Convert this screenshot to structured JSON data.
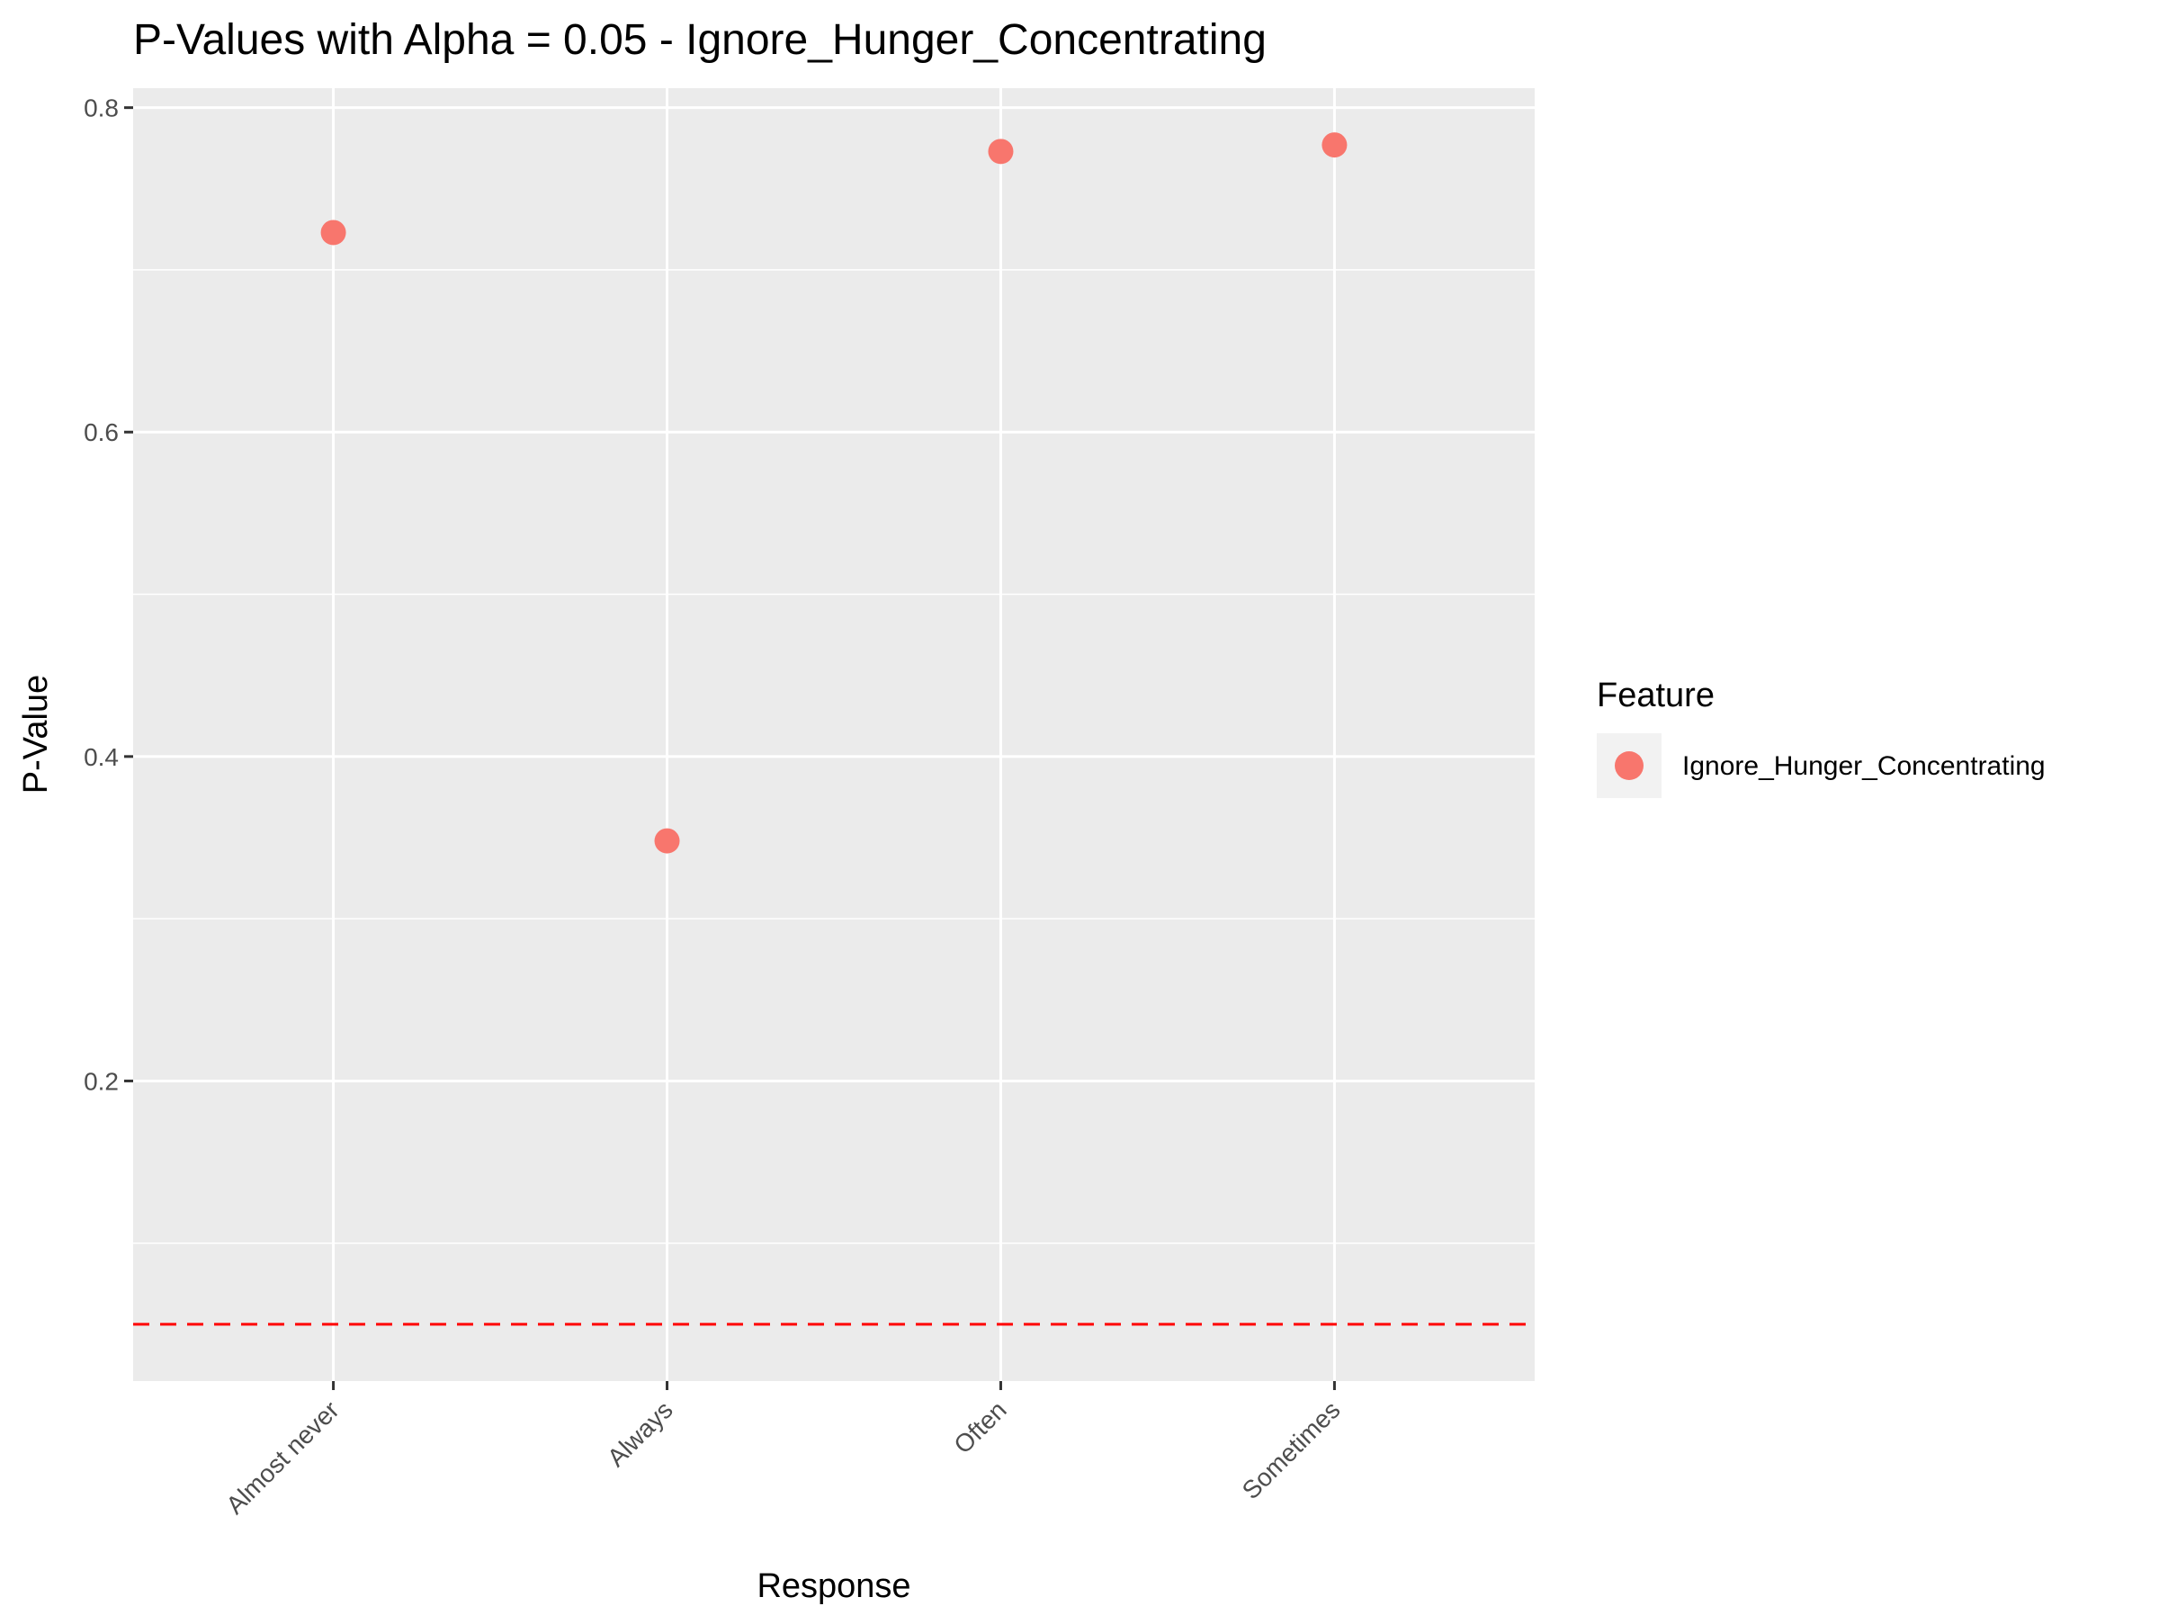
{
  "chart_data": {
    "type": "scatter",
    "title": "P-Values with Alpha = 0.05 - Ignore_Hunger_Concentrating",
    "xlabel": "Response",
    "ylabel": "P-Value",
    "categories": [
      "Almost never",
      "Always",
      "Often",
      "Sometimes"
    ],
    "series": [
      {
        "name": "Ignore_Hunger_Concentrating",
        "values": [
          0.723,
          0.348,
          0.773,
          0.777
        ],
        "color": "#F8766D"
      }
    ],
    "ylim": [
      0.015,
      0.812
    ],
    "yticks": [
      0.2,
      0.4,
      0.6,
      0.8
    ],
    "ytick_labels": [
      "0.2",
      "0.4",
      "0.6",
      "0.8"
    ],
    "reference_line": {
      "y": 0.05,
      "style": "dashed",
      "color": "#FF0000"
    },
    "legend": {
      "title": "Feature",
      "position": "right",
      "entries": [
        "Ignore_Hunger_Concentrating"
      ]
    },
    "grid": true,
    "panel_background": "#EBEBEB",
    "gridline_color": "#FFFFFF"
  }
}
